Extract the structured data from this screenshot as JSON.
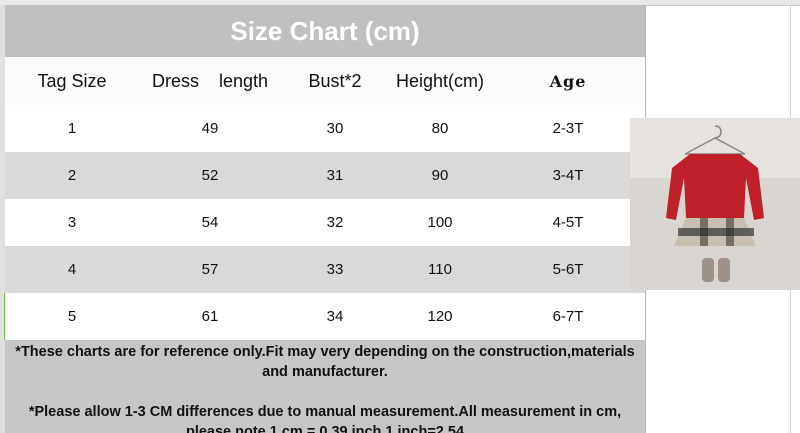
{
  "table": {
    "title": "Size Chart (cm)",
    "headers": [
      "Tag Size",
      "Dress    length",
      "Bust*2",
      "Height(cm)",
      "Age"
    ],
    "rows": [
      [
        "1",
        "49",
        "30",
        "80",
        "2-3T"
      ],
      [
        "2",
        "52",
        "31",
        "90",
        "3-4T"
      ],
      [
        "3",
        "54",
        "32",
        "100",
        "4-5T"
      ],
      [
        "4",
        "57",
        "33",
        "110",
        "5-6T"
      ],
      [
        "5",
        "61",
        "34",
        "120",
        "6-7T"
      ]
    ],
    "notes": [
      "*These charts are for reference only.Fit may very depending on the construction,materials and manufacturer.",
      "*Please allow 1-3 CM differences due to manual measurement.All measurement in cm, please note 1 cm = 0.39 inch,1 inch=2.54"
    ]
  }
}
